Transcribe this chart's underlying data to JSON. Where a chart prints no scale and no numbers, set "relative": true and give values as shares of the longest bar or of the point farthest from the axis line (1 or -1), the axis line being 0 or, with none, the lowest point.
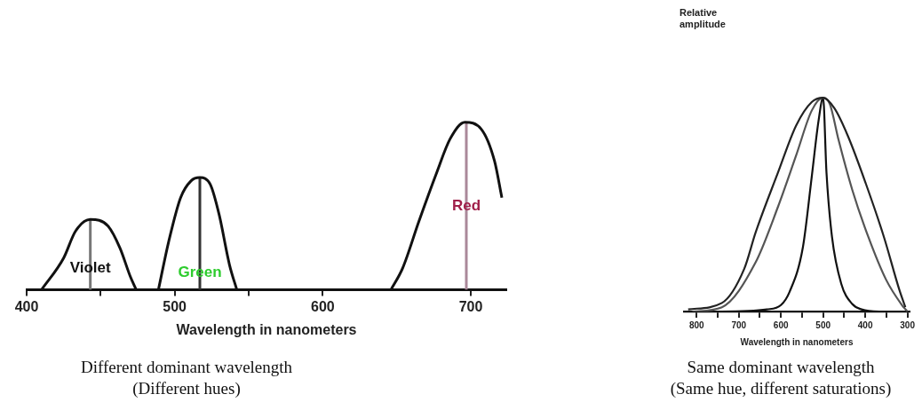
{
  "chart_data": [
    {
      "type": "line",
      "relative": true,
      "xlabel": "Wavelength in nanometers",
      "xlim": [
        400,
        724
      ],
      "xticks": [
        400,
        {
          "value": 450,
          "label": null
        },
        500,
        {
          "value": 550,
          "label": null
        },
        600,
        700
      ],
      "marker": "none",
      "grid": false,
      "legend": false,
      "series": [
        {
          "color": "#111111",
          "x": [
            410,
            425,
            433,
            443,
            455,
            463,
            470,
            474
          ],
          "values": [
            0,
            0.19,
            0.35,
            0.42,
            0.38,
            0.25,
            0.08,
            0
          ]
        },
        {
          "color": "#111111",
          "x": [
            489,
            496,
            504,
            511,
            517,
            524,
            530,
            537,
            542
          ],
          "values": [
            0,
            0.29,
            0.55,
            0.65,
            0.67,
            0.63,
            0.45,
            0.15,
            0
          ]
        },
        {
          "color": "#111111",
          "x": [
            646,
            654,
            665,
            677,
            686,
            696,
            707,
            716,
            721
          ],
          "values": [
            0,
            0.13,
            0.41,
            0.7,
            0.9,
            1,
            0.96,
            0.77,
            0.55
          ]
        },
        {
          "color": "#777777",
          "x": [
            443,
            443
          ],
          "values": [
            0,
            0.42
          ]
        },
        {
          "color": "#333333",
          "x": [
            517,
            517
          ],
          "values": [
            0,
            0.67
          ]
        },
        {
          "color": "#aa8899",
          "x": [
            697,
            697
          ],
          "values": [
            0,
            1
          ]
        }
      ],
      "annotations": [
        {
          "text": "Violet",
          "x": 443,
          "y": 0.13
        },
        {
          "text": "Green",
          "x": 517,
          "y": 0.1
        },
        {
          "text": "Red",
          "x": 697,
          "y": 0.5
        },
        "Different dominant wavelength",
        "(Different hues)"
      ]
    },
    {
      "type": "line",
      "relative": true,
      "xlabel": "Wavelength in nanometers",
      "ylabel": "Relative amplitude",
      "xlim": [
        830,
        295
      ],
      "xticks": [
        800,
        {
          "value": 750,
          "label": null
        },
        700,
        {
          "value": 650,
          "label": null
        },
        600,
        {
          "value": 550,
          "label": null
        },
        500,
        {
          "value": 450,
          "label": null
        },
        400,
        {
          "value": 350,
          "label": null
        },
        300
      ],
      "marker": "none",
      "grid": false,
      "legend": false,
      "series": [
        {
          "color": "#222222",
          "x": [
            820,
            740,
            687,
            660,
            607,
            564,
            527,
            500,
            473,
            441,
            399,
            356,
            319,
            305
          ],
          "values": [
            0.01,
            0.04,
            0.2,
            0.37,
            0.65,
            0.87,
            0.98,
            1,
            0.95,
            0.82,
            0.6,
            0.35,
            0.1,
            0.02
          ]
        },
        {
          "color": "#555555",
          "x": [
            810,
            740,
            660,
            607,
            564,
            527,
            500,
            484,
            463,
            431,
            393,
            351,
            313,
            300
          ],
          "values": [
            0,
            0.02,
            0.23,
            0.49,
            0.73,
            0.94,
            1,
            0.97,
            0.8,
            0.57,
            0.35,
            0.15,
            0.03,
            0
          ]
        },
        {
          "color": "#111111",
          "x": [
            820,
            740,
            633,
            600,
            580,
            548,
            527,
            511,
            500,
            492,
            479,
            457,
            431,
            409,
            367,
            300
          ],
          "values": [
            0,
            0,
            0.01,
            0.03,
            0.09,
            0.3,
            0.63,
            0.89,
            1,
            0.65,
            0.35,
            0.13,
            0.035,
            0.01,
            0,
            0
          ]
        }
      ],
      "annotations": [
        "Same dominant wavelength",
        "(Same hue, different saturations)"
      ]
    }
  ]
}
